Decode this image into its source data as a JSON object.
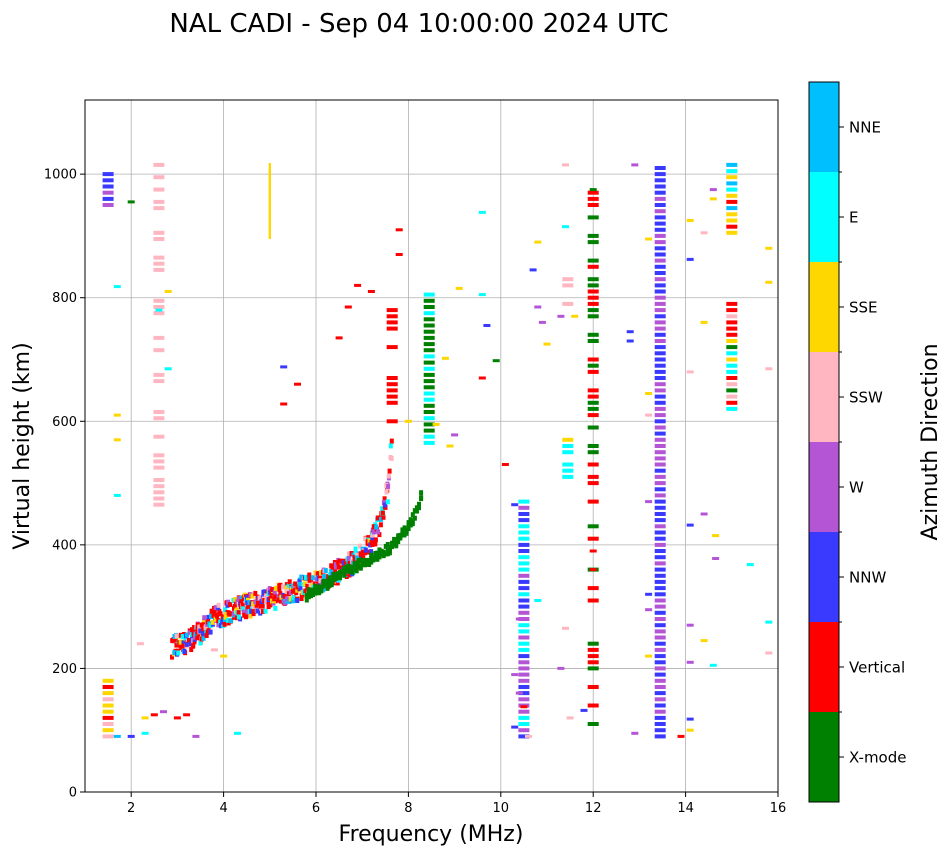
{
  "chart_data": {
    "type": "scatter",
    "title": "NAL CADI - Sep 04 10:00:00 2024 UTC",
    "xlabel": "Frequency (MHz)",
    "ylabel": "Virtual height (km)",
    "xlim": [
      1,
      16
    ],
    "ylim": [
      0,
      1120
    ],
    "xticks": [
      2,
      4,
      6,
      8,
      10,
      12,
      14,
      16
    ],
    "yticks": [
      0,
      200,
      400,
      600,
      800,
      1000
    ],
    "grid": true,
    "colorbar": {
      "title": "Azimuth Direction",
      "categories": [
        {
          "name": "X-mode",
          "color": "#008000"
        },
        {
          "name": "Vertical",
          "color": "#ff0000"
        },
        {
          "name": "NNW",
          "color": "#3a3aff"
        },
        {
          "name": "W",
          "color": "#b455d6"
        },
        {
          "name": "SSW",
          "color": "#ffb6c1"
        },
        {
          "name": "SSE",
          "color": "#ffd700"
        },
        {
          "name": "E",
          "color": "#00ffff"
        },
        {
          "name": "NNE",
          "color": "#00bfff"
        }
      ]
    },
    "vertical_trace": [
      [
        2.9,
        235
      ],
      [
        3.1,
        240
      ],
      [
        3.3,
        248
      ],
      [
        3.5,
        260
      ],
      [
        3.7,
        275
      ],
      [
        3.9,
        285
      ],
      [
        4.1,
        290
      ],
      [
        4.4,
        300
      ],
      [
        4.7,
        305
      ],
      [
        5.0,
        312
      ],
      [
        5.3,
        320
      ],
      [
        5.6,
        328
      ],
      [
        5.9,
        335
      ],
      [
        6.2,
        345
      ],
      [
        6.5,
        358
      ],
      [
        6.8,
        372
      ],
      [
        7.0,
        385
      ],
      [
        7.2,
        405
      ],
      [
        7.35,
        430
      ],
      [
        7.5,
        470
      ],
      [
        7.6,
        520
      ],
      [
        7.65,
        580
      ]
    ],
    "xmode_trace": [
      [
        5.8,
        318
      ],
      [
        6.1,
        330
      ],
      [
        6.4,
        345
      ],
      [
        6.7,
        358
      ],
      [
        7.0,
        370
      ],
      [
        7.3,
        382
      ],
      [
        7.6,
        395
      ],
      [
        7.8,
        410
      ],
      [
        8.0,
        430
      ],
      [
        8.2,
        455
      ],
      [
        8.3,
        490
      ]
    ],
    "columns": [
      {
        "x": 13.45,
        "y0": 90,
        "y1": 1015,
        "colors": [
          "NNW",
          "W",
          "NNW",
          "W",
          "NNW"
        ]
      },
      {
        "x": 15.0,
        "y0": 905,
        "y1": 1018,
        "colors": [
          "Vertical",
          "E",
          "NNE",
          "SSE",
          "Vertical"
        ]
      },
      {
        "x": 15.0,
        "y0": 620,
        "y1": 795,
        "colors": [
          "Vertical",
          "E",
          "SSE",
          "X-mode",
          "SSW"
        ]
      },
      {
        "x": 8.45,
        "y0": 565,
        "y1": 812,
        "colors": [
          "X-mode",
          "X-mode",
          "E"
        ]
      },
      {
        "x": 1.5,
        "y0": 950,
        "y1": 1005,
        "colors": [
          "W",
          "NNE",
          "NNW"
        ]
      },
      {
        "x": 2.6,
        "y0": 465,
        "y1": 1015,
        "colors": [
          "SSW"
        ]
      },
      {
        "x": 11.45,
        "y0": 510,
        "y1": 570,
        "colors": [
          "SSE",
          "E"
        ]
      },
      {
        "x": 11.45,
        "y0": 790,
        "y1": 830,
        "colors": [
          "SSE",
          "SSW"
        ]
      },
      {
        "x": 7.65,
        "y0": 600,
        "y1": 790,
        "colors": [
          "Vertical"
        ]
      },
      {
        "x": 12.0,
        "y0": 90,
        "y1": 1015,
        "colors": [
          "X-mode",
          "Vertical"
        ]
      },
      {
        "x": 10.5,
        "y0": 90,
        "y1": 470,
        "colors": [
          "W",
          "E",
          "NNW"
        ]
      },
      {
        "x": 1.5,
        "y0": 90,
        "y1": 180,
        "colors": [
          "SSE",
          "SSW",
          "Vertical"
        ]
      }
    ],
    "lines": [
      {
        "x": 5.0,
        "y0": 895,
        "y1": 1018,
        "color": "SSE"
      }
    ],
    "scattered_points": [
      [
        2.2,
        240,
        "SSW"
      ],
      [
        2.3,
        120,
        "SSE"
      ],
      [
        2.5,
        125,
        "Vertical"
      ],
      [
        2.7,
        130,
        "W"
      ],
      [
        3.0,
        120,
        "Vertical"
      ],
      [
        3.2,
        125,
        "Vertical"
      ],
      [
        2.0,
        90,
        "NNW"
      ],
      [
        1.7,
        90,
        "NNE"
      ],
      [
        2.3,
        95,
        "E"
      ],
      [
        3.4,
        90,
        "W"
      ],
      [
        4.3,
        95,
        "E"
      ],
      [
        3.8,
        230,
        "SSW"
      ],
      [
        4.0,
        220,
        "SSE"
      ],
      [
        5.3,
        688,
        "NNW"
      ],
      [
        5.6,
        660,
        "Vertical"
      ],
      [
        5.3,
        628,
        "Vertical"
      ],
      [
        6.5,
        735,
        "Vertical"
      ],
      [
        6.7,
        785,
        "Vertical"
      ],
      [
        6.9,
        820,
        "Vertical"
      ],
      [
        7.2,
        810,
        "Vertical"
      ],
      [
        7.8,
        870,
        "Vertical"
      ],
      [
        7.8,
        910,
        "Vertical"
      ],
      [
        8.0,
        600,
        "SSE"
      ],
      [
        8.6,
        595,
        "SSE"
      ],
      [
        8.9,
        560,
        "SSE"
      ],
      [
        9.0,
        578,
        "W"
      ],
      [
        8.8,
        702,
        "SSE"
      ],
      [
        9.1,
        815,
        "SSE"
      ],
      [
        9.6,
        805,
        "E"
      ],
      [
        9.6,
        938,
        "E"
      ],
      [
        9.7,
        755,
        "NNW"
      ],
      [
        9.6,
        670,
        "Vertical"
      ],
      [
        9.9,
        698,
        "X-mode"
      ],
      [
        10.1,
        530,
        "Vertical"
      ],
      [
        10.3,
        465,
        "NNW"
      ],
      [
        10.4,
        280,
        "W"
      ],
      [
        10.3,
        190,
        "W"
      ],
      [
        10.4,
        160,
        "W"
      ],
      [
        10.5,
        138,
        "Vertical"
      ],
      [
        10.3,
        105,
        "NNW"
      ],
      [
        10.6,
        90,
        "SSW"
      ],
      [
        10.8,
        310,
        "E"
      ],
      [
        10.7,
        845,
        "NNW"
      ],
      [
        10.8,
        890,
        "SSE"
      ],
      [
        10.8,
        785,
        "W"
      ],
      [
        10.9,
        760,
        "W"
      ],
      [
        11.0,
        725,
        "SSE"
      ],
      [
        11.3,
        770,
        "W"
      ],
      [
        11.6,
        770,
        "SSE"
      ],
      [
        11.4,
        265,
        "SSW"
      ],
      [
        11.3,
        200,
        "W"
      ],
      [
        11.5,
        120,
        "SSW"
      ],
      [
        11.8,
        132,
        "NNW"
      ],
      [
        12.0,
        360,
        "Vertical"
      ],
      [
        12.0,
        390,
        "Vertical"
      ],
      [
        12.0,
        780,
        "X-mode"
      ],
      [
        12.0,
        975,
        "X-mode"
      ],
      [
        11.4,
        915,
        "E"
      ],
      [
        11.4,
        1015,
        "SSW"
      ],
      [
        12.8,
        730,
        "NNW"
      ],
      [
        12.8,
        745,
        "NNW"
      ],
      [
        12.9,
        1015,
        "W"
      ],
      [
        13.2,
        895,
        "SSE"
      ],
      [
        13.2,
        645,
        "SSE"
      ],
      [
        13.2,
        610,
        "SSW"
      ],
      [
        13.2,
        470,
        "W"
      ],
      [
        13.2,
        320,
        "NNW"
      ],
      [
        13.2,
        295,
        "W"
      ],
      [
        13.2,
        220,
        "SSE"
      ],
      [
        12.9,
        95,
        "W"
      ],
      [
        13.9,
        90,
        "Vertical"
      ],
      [
        14.1,
        100,
        "SSE"
      ],
      [
        14.1,
        118,
        "NNW"
      ],
      [
        14.1,
        210,
        "W"
      ],
      [
        14.1,
        270,
        "W"
      ],
      [
        14.1,
        432,
        "NNW"
      ],
      [
        14.4,
        450,
        "W"
      ],
      [
        14.4,
        245,
        "SSE"
      ],
      [
        14.6,
        205,
        "E"
      ],
      [
        14.65,
        415,
        "SSE"
      ],
      [
        14.65,
        378,
        "W"
      ],
      [
        14.1,
        680,
        "SSW"
      ],
      [
        14.1,
        862,
        "NNW"
      ],
      [
        14.1,
        925,
        "SSE"
      ],
      [
        14.4,
        905,
        "SSW"
      ],
      [
        14.4,
        760,
        "SSE"
      ],
      [
        14.6,
        960,
        "SSE"
      ],
      [
        14.6,
        975,
        "W"
      ],
      [
        15.4,
        368,
        "E"
      ],
      [
        15.8,
        275,
        "E"
      ],
      [
        15.8,
        225,
        "SSW"
      ],
      [
        15.8,
        685,
        "SSW"
      ],
      [
        15.8,
        825,
        "SSE"
      ],
      [
        15.8,
        880,
        "SSE"
      ],
      [
        1.7,
        610,
        "SSE"
      ],
      [
        1.7,
        570,
        "SSE"
      ],
      [
        1.7,
        818,
        "E"
      ],
      [
        1.7,
        480,
        "E"
      ],
      [
        2.0,
        955,
        "X-mode"
      ],
      [
        2.8,
        685,
        "E"
      ],
      [
        2.8,
        810,
        "SSE"
      ],
      [
        2.6,
        780,
        "E"
      ]
    ]
  }
}
